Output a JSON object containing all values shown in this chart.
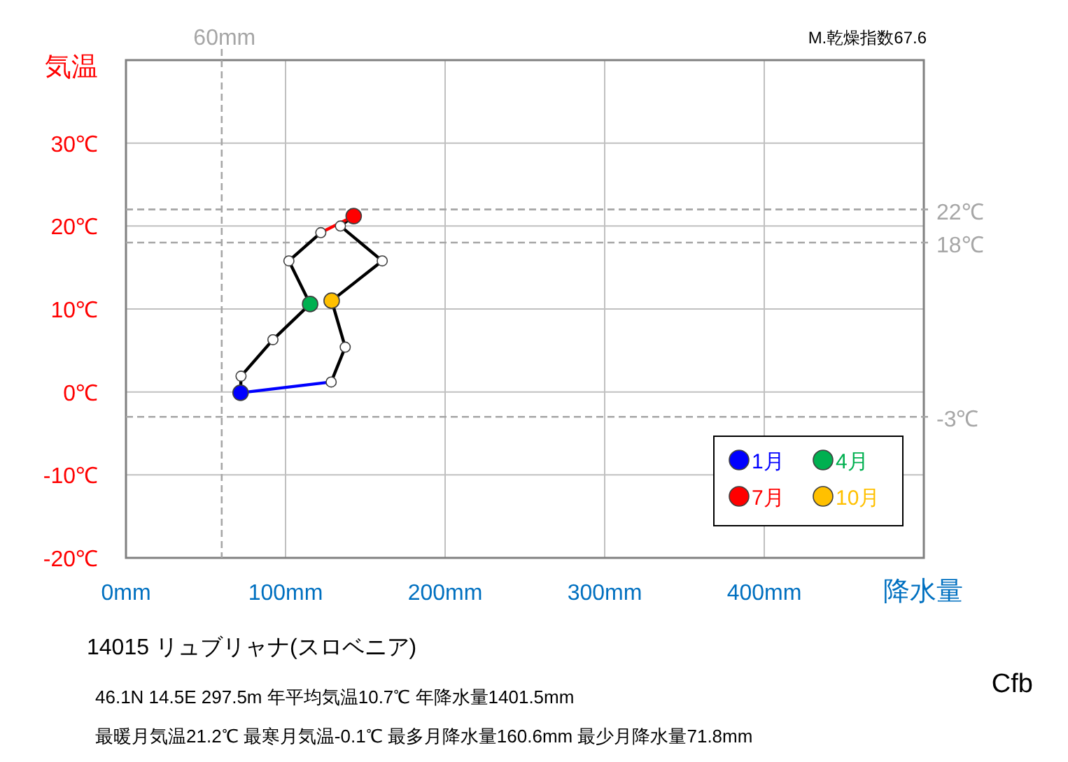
{
  "chart_data": {
    "type": "line",
    "title": "14015  リュブリャナ(スロベニア)",
    "subtitle": "46.1N  14.5E 297.5m  年平均気温10.7℃ 年降水量1401.5mm",
    "annotations": [
      "最暖月気温21.2℃ 最寒月気温-0.1℃ 最多月降水量160.6mm 最少月降水量71.8mm",
      "M.乾燥指数67.6",
      "Cfb"
    ],
    "xlabel": "降水量",
    "ylabel": "気温",
    "xlim": [
      0,
      500
    ],
    "ylim": [
      -20,
      40
    ],
    "xticks": [
      {
        "value": 0,
        "label": "0mm"
      },
      {
        "value": 100,
        "label": "100mm"
      },
      {
        "value": 200,
        "label": "200mm"
      },
      {
        "value": 300,
        "label": "300mm"
      },
      {
        "value": 400,
        "label": "400mm"
      },
      {
        "value": 500,
        "label": null
      }
    ],
    "yticks": [
      {
        "value": -20,
        "label": "-20℃"
      },
      {
        "value": -10,
        "label": "-10℃"
      },
      {
        "value": 0,
        "label": "0℃"
      },
      {
        "value": 10,
        "label": "10℃"
      },
      {
        "value": 20,
        "label": "20℃"
      },
      {
        "value": 30,
        "label": "30℃"
      },
      {
        "value": 40,
        "label": null
      }
    ],
    "grid": true,
    "legend": "bottom right",
    "ref_lines": [
      {
        "axis": "x",
        "value": 60,
        "label": "60mm",
        "color": "#a6a6a6",
        "line_style": "dashed"
      },
      {
        "axis": "y",
        "value": 22,
        "label": "22℃",
        "color": "#a6a6a6",
        "line_style": "dashed"
      },
      {
        "axis": "y",
        "value": 18,
        "label": "18℃",
        "color": "#a6a6a6",
        "line_style": "dashed"
      },
      {
        "axis": "y",
        "value": -3,
        "label": "-3℃",
        "color": "#a6a6a6",
        "line_style": "dashed"
      }
    ],
    "series": [
      {
        "color": "#000000",
        "marker": "none",
        "x": [
          71.8,
          72.1,
          92.1,
          115.4,
          102.1,
          122.1
        ],
        "values": [
          -0.1,
          1.9,
          6.3,
          10.6,
          15.8,
          19.2
        ]
      },
      {
        "color": "#000000",
        "marker": "none",
        "x": [
          142.7,
          134.4,
          160.6,
          128.9,
          137.4,
          128.6
        ],
        "values": [
          21.2,
          20.0,
          15.8,
          11.0,
          5.4,
          1.2
        ]
      },
      {
        "color": "#0000ff",
        "marker": "none",
        "x": [
          128.6,
          71.8
        ],
        "values": [
          1.2,
          -0.1
        ]
      },
      {
        "color": "#ff0000",
        "marker": "none",
        "x": [
          122.1,
          142.7
        ],
        "values": [
          19.2,
          21.2
        ]
      },
      {
        "type": "scatter",
        "color": "#ffffff",
        "marker": "circle",
        "x": [
          72.1,
          92.1,
          102.1,
          122.1,
          134.4,
          160.6,
          137.4,
          128.6
        ],
        "values": [
          1.9,
          6.3,
          15.8,
          19.2,
          20.0,
          15.8,
          5.4,
          1.2
        ]
      },
      {
        "type": "scatter",
        "name": "1月",
        "color": "#0000ff",
        "marker": "circle",
        "x": [
          71.8
        ],
        "values": [
          -0.1
        ]
      },
      {
        "type": "scatter",
        "name": "4月",
        "color": "#00b050",
        "marker": "circle",
        "x": [
          115.4
        ],
        "values": [
          10.6
        ]
      },
      {
        "type": "scatter",
        "name": "7月",
        "color": "#ff0000",
        "marker": "circle",
        "x": [
          142.7
        ],
        "values": [
          21.2
        ]
      },
      {
        "type": "scatter",
        "name": "10月",
        "color": "#ffc000",
        "marker": "circle",
        "x": [
          128.9
        ],
        "values": [
          11.0
        ]
      }
    ]
  }
}
